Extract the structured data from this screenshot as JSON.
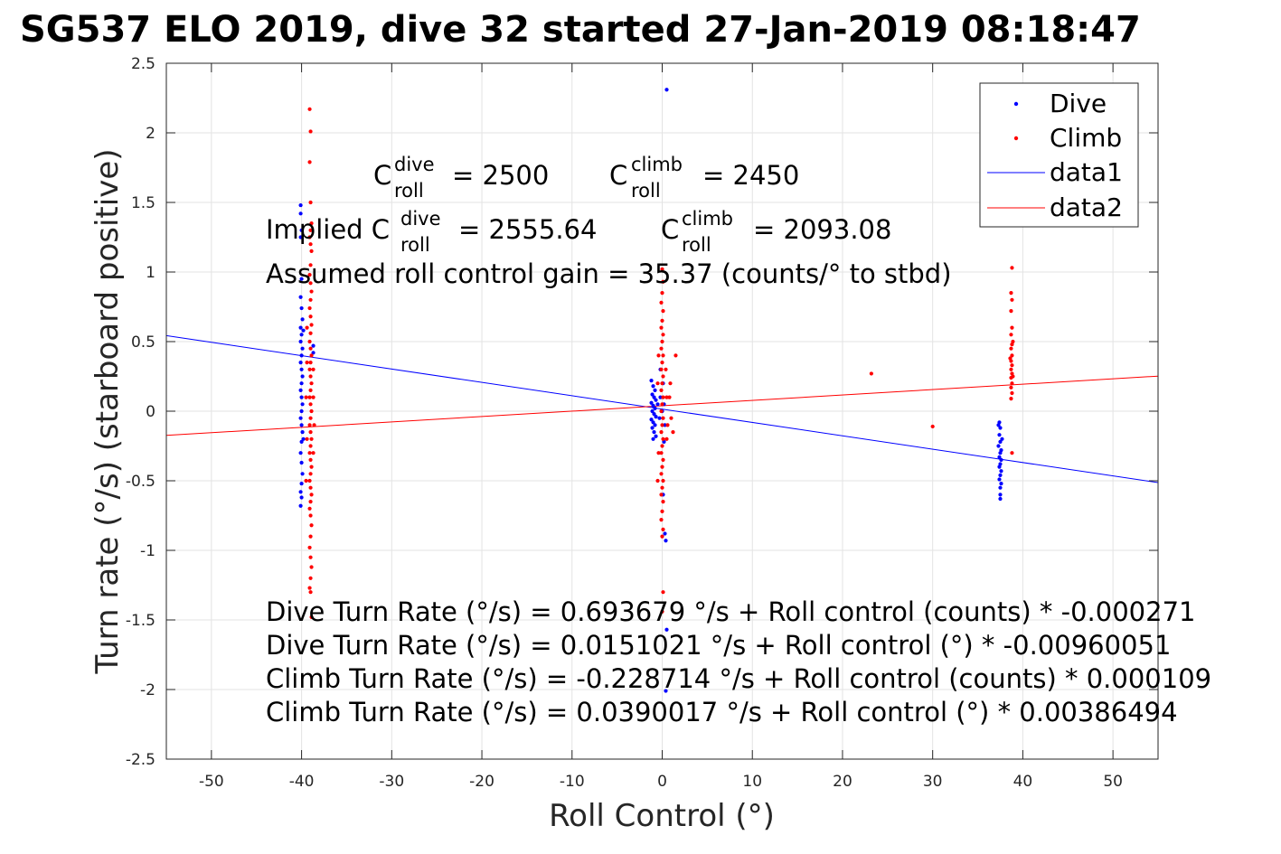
{
  "chart_data": {
    "type": "scatter",
    "title": "SG537 ELO 2019, dive 32 started 27-Jan-2019 08:18:47",
    "xlabel": "Roll Control (°)",
    "ylabel": "Turn rate (°/s) (starboard positive)",
    "xlim": [
      -55,
      55
    ],
    "ylim": [
      -2.5,
      2.5
    ],
    "grid": true,
    "legend_position": "top-right",
    "xticks": [
      "-50",
      "-40",
      "-30",
      "-20",
      "-10",
      "0",
      "10",
      "20",
      "30",
      "40",
      "50"
    ],
    "yticks": [
      "2.5",
      "2",
      "1.5",
      "1",
      "0.5",
      "0",
      "-0.5",
      "-1",
      "-1.5",
      "-2",
      "-2.5"
    ],
    "series": [
      {
        "name": "Dive",
        "color": "#0000ff",
        "marker": "dot",
        "points": [
          [
            -40.1,
            1.48
          ],
          [
            -40.1,
            1.42
          ],
          [
            -40.0,
            1.3
          ],
          [
            -40.1,
            1.25
          ],
          [
            -40.0,
            0.95
          ],
          [
            -40.1,
            0.82
          ],
          [
            -40.0,
            0.74
          ],
          [
            -39.9,
            0.66
          ],
          [
            -40.1,
            0.6
          ],
          [
            -40.0,
            0.55
          ],
          [
            -40.1,
            0.5
          ],
          [
            -39.9,
            0.45
          ],
          [
            -40.0,
            0.4
          ],
          [
            -40.1,
            0.35
          ],
          [
            -40.0,
            0.3
          ],
          [
            -39.9,
            0.25
          ],
          [
            -40.0,
            0.2
          ],
          [
            -40.1,
            0.15
          ],
          [
            -40.0,
            0.1
          ],
          [
            -39.9,
            0.05
          ],
          [
            -40.0,
            0.0
          ],
          [
            -40.1,
            -0.05
          ],
          [
            -40.0,
            -0.1
          ],
          [
            -39.9,
            -0.15
          ],
          [
            -40.0,
            -0.22
          ],
          [
            -40.1,
            -0.3
          ],
          [
            -40.0,
            -0.37
          ],
          [
            -39.9,
            -0.45
          ],
          [
            -40.0,
            -0.52
          ],
          [
            -40.1,
            -0.58
          ],
          [
            -40.0,
            -0.62
          ],
          [
            -40.1,
            -0.68
          ],
          [
            -39.8,
            0.58
          ],
          [
            -39.8,
            -0.2
          ],
          [
            -38.7,
            0.47
          ],
          [
            -38.7,
            0.42
          ],
          [
            -1.2,
            0.22
          ],
          [
            -1.0,
            0.18
          ],
          [
            -0.8,
            0.15
          ],
          [
            -1.1,
            0.12
          ],
          [
            -0.9,
            0.1
          ],
          [
            -0.7,
            0.08
          ],
          [
            -1.2,
            0.06
          ],
          [
            -1.0,
            0.04
          ],
          [
            -0.8,
            0.02
          ],
          [
            -1.1,
            0.0
          ],
          [
            -0.9,
            -0.02
          ],
          [
            -0.7,
            -0.04
          ],
          [
            -1.2,
            -0.06
          ],
          [
            -1.0,
            -0.08
          ],
          [
            -0.8,
            -0.1
          ],
          [
            -1.1,
            -0.12
          ],
          [
            -0.9,
            -0.15
          ],
          [
            -0.7,
            -0.18
          ],
          [
            -1.0,
            -0.2
          ],
          [
            -0.5,
            0.05
          ],
          [
            -0.3,
            -0.05
          ],
          [
            -0.2,
            0.1
          ],
          [
            0.0,
            0.0
          ],
          [
            0.2,
            0.05
          ],
          [
            0.3,
            -0.1
          ],
          [
            0.1,
            0.2
          ],
          [
            0.2,
            -0.22
          ],
          [
            0.5,
            2.31
          ],
          [
            0.3,
            -0.88
          ],
          [
            0.4,
            -0.93
          ],
          [
            0.5,
            -1.57
          ],
          [
            0.4,
            -2.01
          ],
          [
            0.1,
            -0.6
          ],
          [
            -0.2,
            0.3
          ],
          [
            37.4,
            -0.08
          ],
          [
            37.5,
            -0.12
          ],
          [
            37.4,
            -0.17
          ],
          [
            37.5,
            -0.22
          ],
          [
            37.3,
            -0.25
          ],
          [
            37.6,
            -0.28
          ],
          [
            37.5,
            -0.3
          ],
          [
            37.4,
            -0.33
          ],
          [
            37.6,
            -0.35
          ],
          [
            37.5,
            -0.38
          ],
          [
            37.4,
            -0.4
          ],
          [
            37.6,
            -0.43
          ],
          [
            37.5,
            -0.46
          ],
          [
            37.4,
            -0.49
          ],
          [
            37.6,
            -0.52
          ],
          [
            37.5,
            -0.55
          ],
          [
            37.5,
            -0.6
          ],
          [
            37.5,
            -0.63
          ],
          [
            37.3,
            -0.1
          ],
          [
            37.7,
            -0.2
          ]
        ]
      },
      {
        "name": "Climb",
        "color": "#ff0000",
        "marker": "dot",
        "points": [
          [
            -39.1,
            2.17
          ],
          [
            -39.0,
            2.01
          ],
          [
            -39.1,
            1.79
          ],
          [
            -39.0,
            1.5
          ],
          [
            -38.9,
            1.35
          ],
          [
            -39.0,
            1.3
          ],
          [
            -39.1,
            1.25
          ],
          [
            -39.0,
            1.2
          ],
          [
            -38.9,
            1.15
          ],
          [
            -39.0,
            1.05
          ],
          [
            -39.1,
            0.98
          ],
          [
            -39.0,
            0.92
          ],
          [
            -38.9,
            0.86
          ],
          [
            -39.0,
            0.8
          ],
          [
            -39.1,
            0.74
          ],
          [
            -39.0,
            0.68
          ],
          [
            -38.9,
            0.62
          ],
          [
            -39.0,
            0.56
          ],
          [
            -39.1,
            0.5
          ],
          [
            -39.0,
            0.45
          ],
          [
            -38.9,
            0.4
          ],
          [
            -39.0,
            0.35
          ],
          [
            -39.1,
            0.3
          ],
          [
            -39.0,
            0.25
          ],
          [
            -38.9,
            0.2
          ],
          [
            -39.0,
            0.15
          ],
          [
            -39.1,
            0.1
          ],
          [
            -39.0,
            0.05
          ],
          [
            -38.9,
            0.0
          ],
          [
            -39.0,
            -0.05
          ],
          [
            -39.1,
            -0.1
          ],
          [
            -39.0,
            -0.15
          ],
          [
            -38.9,
            -0.2
          ],
          [
            -39.0,
            -0.25
          ],
          [
            -39.1,
            -0.3
          ],
          [
            -39.0,
            -0.35
          ],
          [
            -38.9,
            -0.4
          ],
          [
            -39.0,
            -0.45
          ],
          [
            -39.1,
            -0.5
          ],
          [
            -39.0,
            -0.55
          ],
          [
            -38.9,
            -0.6
          ],
          [
            -39.0,
            -0.65
          ],
          [
            -39.1,
            -0.7
          ],
          [
            -39.0,
            -0.75
          ],
          [
            -38.9,
            -0.82
          ],
          [
            -39.0,
            -0.9
          ],
          [
            -39.1,
            -0.98
          ],
          [
            -39.0,
            -1.05
          ],
          [
            -38.9,
            -1.12
          ],
          [
            -39.0,
            -1.2
          ],
          [
            -39.1,
            -1.27
          ],
          [
            -39.0,
            -1.3
          ],
          [
            -38.9,
            -1.48
          ],
          [
            -39.4,
            0.35
          ],
          [
            -39.5,
            0.1
          ],
          [
            -39.4,
            -0.2
          ],
          [
            -39.5,
            -0.5
          ],
          [
            -39.4,
            0.6
          ],
          [
            -38.7,
            0.3
          ],
          [
            -38.7,
            0.1
          ],
          [
            -38.6,
            -0.1
          ],
          [
            -38.7,
            -0.3
          ],
          [
            0.0,
            1.02
          ],
          [
            0.1,
            0.93
          ],
          [
            0.0,
            0.85
          ],
          [
            -0.1,
            0.78
          ],
          [
            0.1,
            0.72
          ],
          [
            0.0,
            0.65
          ],
          [
            -0.1,
            0.6
          ],
          [
            0.1,
            0.55
          ],
          [
            0.0,
            0.5
          ],
          [
            -0.1,
            0.45
          ],
          [
            0.1,
            0.4
          ],
          [
            0.0,
            0.35
          ],
          [
            -0.1,
            0.3
          ],
          [
            0.1,
            0.25
          ],
          [
            0.0,
            0.2
          ],
          [
            -0.1,
            0.15
          ],
          [
            0.1,
            0.1
          ],
          [
            0.0,
            0.05
          ],
          [
            -0.1,
            0.0
          ],
          [
            0.1,
            -0.05
          ],
          [
            0.0,
            -0.1
          ],
          [
            -0.1,
            -0.15
          ],
          [
            0.1,
            -0.2
          ],
          [
            0.0,
            -0.25
          ],
          [
            -0.1,
            -0.3
          ],
          [
            0.1,
            -0.35
          ],
          [
            0.0,
            -0.4
          ],
          [
            -0.1,
            -0.45
          ],
          [
            0.1,
            -0.5
          ],
          [
            0.0,
            -0.55
          ],
          [
            -0.1,
            -0.6
          ],
          [
            0.1,
            -0.65
          ],
          [
            0.0,
            -0.72
          ],
          [
            -0.1,
            -0.78
          ],
          [
            0.1,
            -0.85
          ],
          [
            0.0,
            -0.9
          ],
          [
            0.1,
            -1.3
          ],
          [
            0.0,
            -1.44
          ],
          [
            0.4,
            0.3
          ],
          [
            0.5,
            0.1
          ],
          [
            0.6,
            -0.1
          ],
          [
            0.5,
            -0.2
          ],
          [
            -0.4,
            0.4
          ],
          [
            -0.5,
            0.2
          ],
          [
            -0.4,
            -0.3
          ],
          [
            -0.5,
            -0.5
          ],
          [
            0.9,
            0.2
          ],
          [
            1.0,
            -0.05
          ],
          [
            1.5,
            0.4
          ],
          [
            0.8,
            0.1
          ],
          [
            1.2,
            -0.15
          ],
          [
            23.2,
            0.27
          ],
          [
            30.0,
            -0.11
          ],
          [
            38.8,
            1.03
          ],
          [
            38.7,
            0.85
          ],
          [
            38.8,
            0.8
          ],
          [
            38.7,
            0.72
          ],
          [
            38.8,
            0.6
          ],
          [
            38.7,
            0.55
          ],
          [
            38.8,
            0.48
          ],
          [
            38.7,
            0.45
          ],
          [
            38.8,
            0.4
          ],
          [
            38.7,
            0.36
          ],
          [
            38.8,
            0.33
          ],
          [
            38.7,
            0.3
          ],
          [
            38.8,
            0.27
          ],
          [
            38.7,
            0.24
          ],
          [
            38.8,
            0.2
          ],
          [
            38.7,
            0.17
          ],
          [
            38.8,
            0.13
          ],
          [
            38.7,
            0.09
          ],
          [
            38.8,
            -0.3
          ],
          [
            38.9,
            0.5
          ],
          [
            38.6,
            0.38
          ],
          [
            38.9,
            0.25
          ]
        ]
      },
      {
        "name": "data1",
        "type": "line",
        "color": "#0000ff",
        "x": [
          -55,
          55
        ],
        "y": [
          0.543,
          -0.513
        ]
      },
      {
        "name": "data2",
        "type": "line",
        "color": "#ff0000",
        "x": [
          -55,
          55
        ],
        "y": [
          -0.174,
          0.252
        ]
      }
    ],
    "annotations": {
      "c_roll_dive_value": "= 2500",
      "c_roll_climb_value": "= 2450",
      "implied_prefix": "Implied C",
      "implied_dive_value": "= 2555.64",
      "implied_climb_value": "= 2093.08",
      "c_letter": "C",
      "sup_dive": "dive",
      "sup_climb": "climb",
      "sub_roll": "roll",
      "gain_line": "Assumed roll control gain = 35.37 (counts/° to stbd)",
      "fit_lines": [
        "Dive Turn Rate (°/s) = 0.693679 °/s + Roll control (counts) * -0.000271",
        "Dive Turn Rate (°/s) = 0.0151021 °/s + Roll control (°) * -0.00960051",
        "Climb Turn Rate (°/s) = -0.228714 °/s + Roll control (counts) * 0.000109",
        "Climb Turn Rate (°/s) = 0.0390017 °/s + Roll control (°) * 0.00386494"
      ]
    }
  }
}
